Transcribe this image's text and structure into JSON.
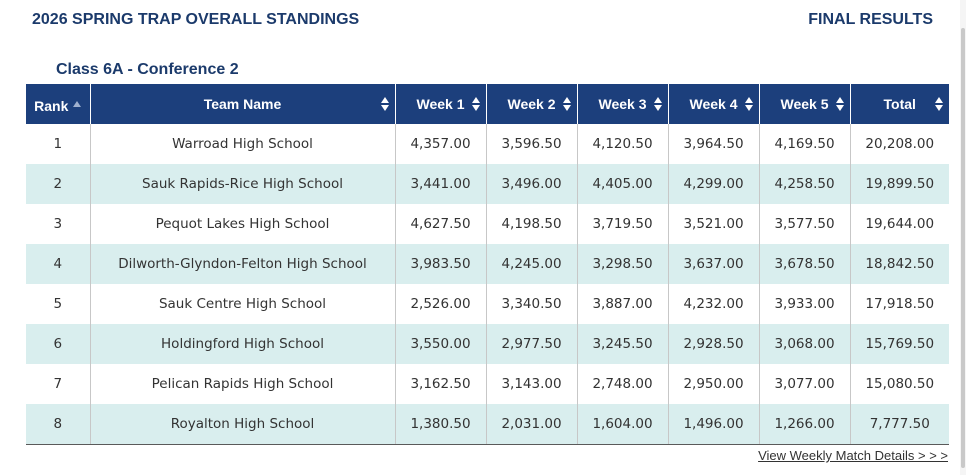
{
  "header": {
    "title": "2026 SPRING TRAP OVERALL STANDINGS",
    "status": "FINAL RESULTS"
  },
  "section": {
    "subtitle": "Class 6A - Conference 2"
  },
  "table": {
    "columns": [
      "Rank",
      "Team Name",
      "Week 1",
      "Week 2",
      "Week 3",
      "Week 4",
      "Week 5",
      "Total"
    ],
    "sorted_column": "Rank",
    "sort_direction": "ascending",
    "rows": [
      [
        "1",
        "Warroad High School",
        "4,357.00",
        "3,596.50",
        "4,120.50",
        "3,964.50",
        "4,169.50",
        "20,208.00"
      ],
      [
        "2",
        "Sauk Rapids-Rice High School",
        "3,441.00",
        "3,496.00",
        "4,405.00",
        "4,299.00",
        "4,258.50",
        "19,899.50"
      ],
      [
        "3",
        "Pequot Lakes High School",
        "4,627.50",
        "4,198.50",
        "3,719.50",
        "3,521.00",
        "3,577.50",
        "19,644.00"
      ],
      [
        "4",
        "Dilworth-Glyndon-Felton High School",
        "3,983.50",
        "4,245.00",
        "3,298.50",
        "3,637.00",
        "3,678.50",
        "18,842.50"
      ],
      [
        "5",
        "Sauk Centre High School",
        "2,526.00",
        "3,340.50",
        "3,887.00",
        "4,232.00",
        "3,933.00",
        "17,918.50"
      ],
      [
        "6",
        "Holdingford High School",
        "3,550.00",
        "2,977.50",
        "3,245.50",
        "2,928.50",
        "3,068.00",
        "15,769.50"
      ],
      [
        "7",
        "Pelican Rapids High School",
        "3,162.50",
        "3,143.00",
        "2,748.00",
        "2,950.00",
        "3,077.00",
        "15,080.50"
      ],
      [
        "8",
        "Royalton High School",
        "1,380.50",
        "2,031.00",
        "1,604.00",
        "1,496.00",
        "1,266.00",
        "7,777.50"
      ]
    ]
  },
  "footer": {
    "link_label": "View Weekly Match Details > > >"
  },
  "colors": {
    "header_bg": "#1c3f7c",
    "title_text": "#1b3a6b",
    "stripe_row": "#d9eeee"
  },
  "icons": {
    "sort": "sort-arrows-icon",
    "sorted_ascending": "sort-ascending-icon"
  }
}
